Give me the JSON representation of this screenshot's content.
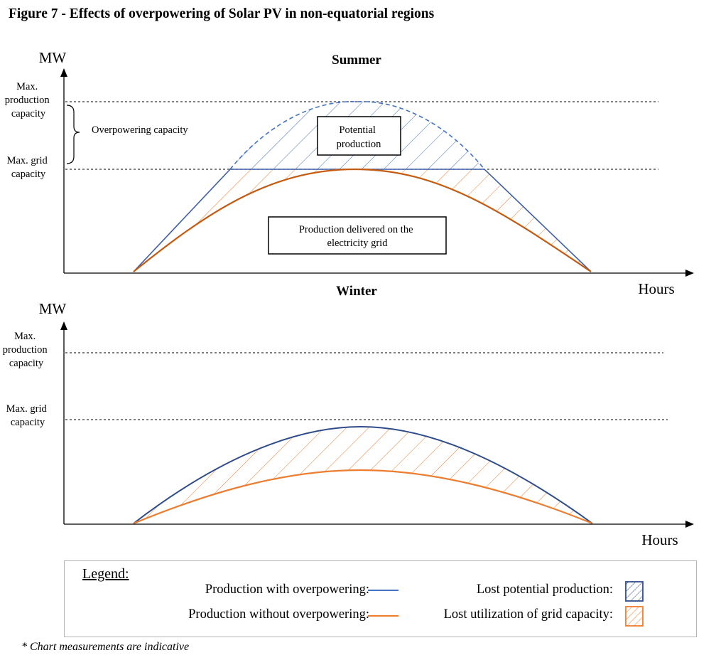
{
  "figure": {
    "title": "Figure 7 - Effects of overpowering of Solar PV in non-equatorial regions",
    "footnote": "* Chart measurements are indicative"
  },
  "colors": {
    "with_overpowering": "#4472c4",
    "with_overpowering_dark": "#2f4d8a",
    "without_overpowering": "#ed7d31",
    "without_overpowering_dark": "#c55a11",
    "grid_line": "#333333",
    "box_border": "#000000",
    "legend_border": "#b5b5b5"
  },
  "summer": {
    "title": "Summer",
    "y_axis_label": "MW",
    "x_axis_label": "Hours",
    "max_production_label": [
      "Max.",
      "production",
      "capacity"
    ],
    "max_grid_label": [
      "Max. grid",
      "capacity"
    ],
    "overpowering_label": "Overpowering capacity",
    "potential_box": [
      "Potential",
      "production"
    ],
    "delivered_box": [
      "Production delivered on the",
      "electricity grid"
    ]
  },
  "winter": {
    "title": "Winter",
    "y_axis_label": "MW",
    "x_axis_label": "Hours",
    "max_production_label": [
      "Max.",
      "production",
      "capacity"
    ],
    "max_grid_label": [
      "Max. grid",
      "capacity"
    ]
  },
  "legend": {
    "title": "Legend:",
    "items": {
      "with_overpowering": "Production with overpowering:",
      "without_overpowering": "Production without overpowering:",
      "lost_potential": "Lost potential production:",
      "lost_grid": "Lost utilization of grid capacity:"
    }
  }
}
